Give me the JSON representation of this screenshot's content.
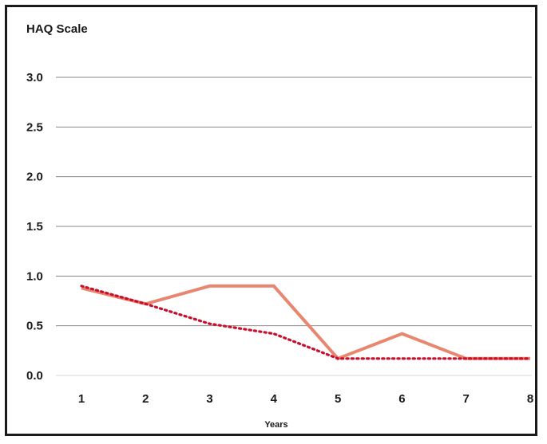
{
  "chart_data": {
    "type": "line",
    "title": "HAQ Scale",
    "xlabel": "Years",
    "ylabel": "",
    "x": [
      1,
      2,
      3,
      4,
      5,
      6,
      7,
      8
    ],
    "ylim": [
      0,
      3.0
    ],
    "yticks": [
      "0.0",
      "0.5",
      "1.0",
      "1.5",
      "2.0",
      "2.5",
      "3.0"
    ],
    "grid": true,
    "legend": "none",
    "series": [
      {
        "values": [
          0.88,
          0.72,
          0.9,
          0.9,
          0.17,
          0.42,
          0.17,
          0.17
        ],
        "color": "#e8866f",
        "style": "solid"
      },
      {
        "values": [
          0.9,
          0.72,
          0.52,
          0.42,
          0.17,
          0.17,
          0.17,
          0.17
        ],
        "color": "#c8102e",
        "style": "dotted"
      }
    ]
  }
}
